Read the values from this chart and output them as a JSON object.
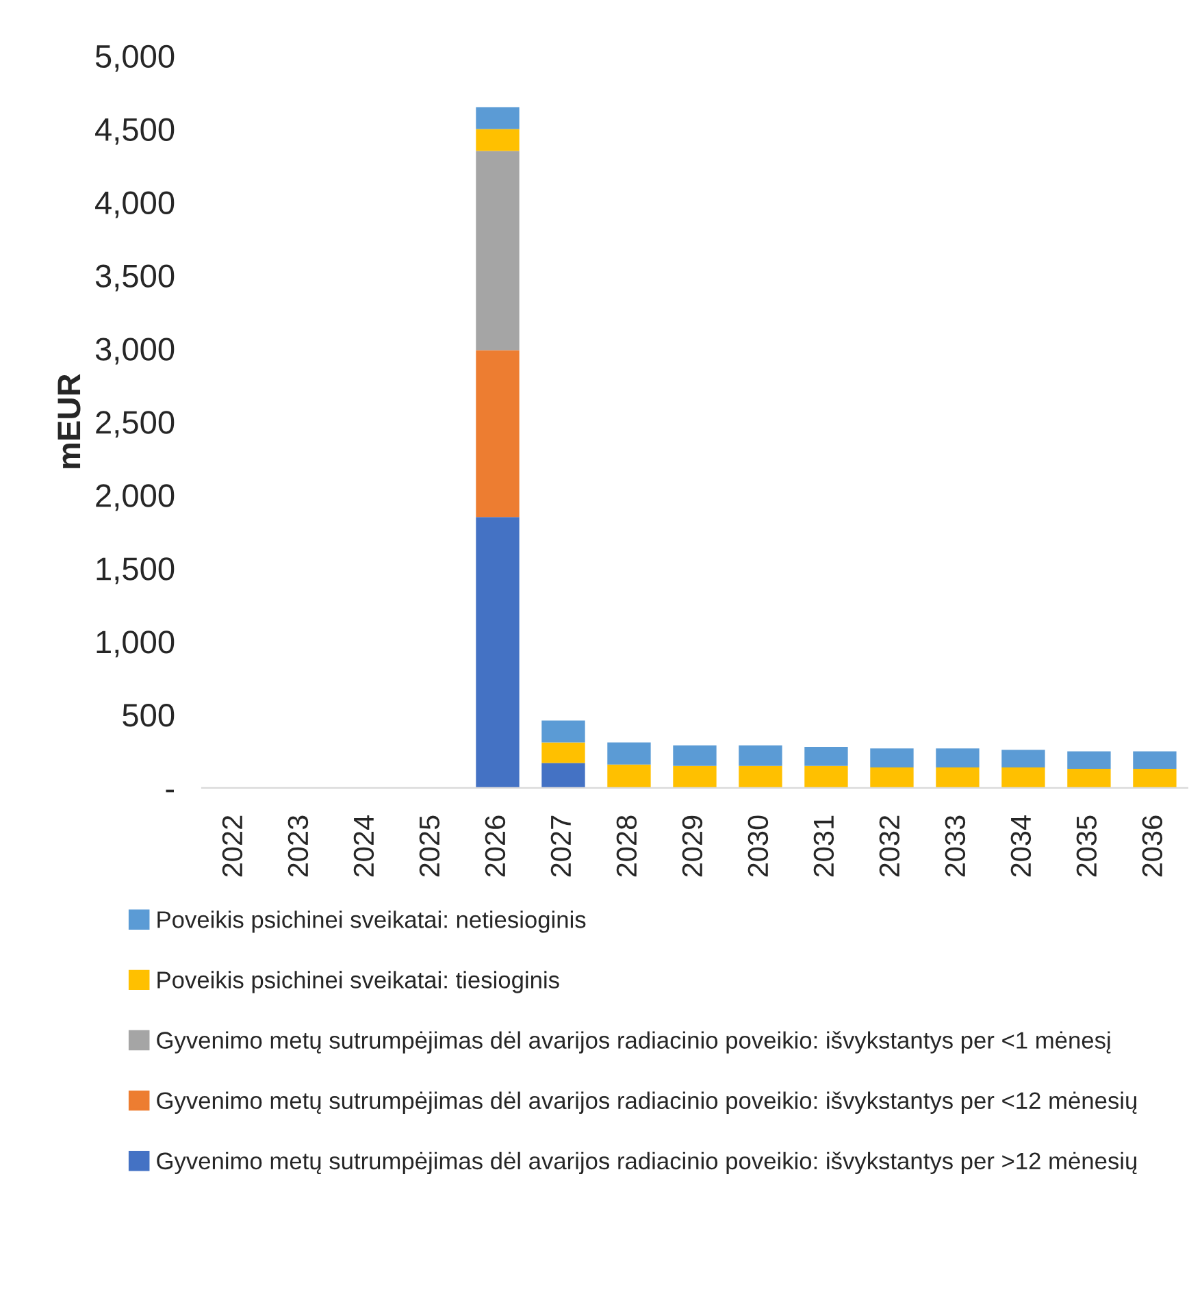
{
  "chart_data": {
    "type": "bar",
    "stacked": true,
    "ylabel": "mEUR",
    "categories": [
      "2022",
      "2023",
      "2024",
      "2025",
      "2026",
      "2027",
      "2028",
      "2029",
      "2030",
      "2031",
      "2032",
      "2033",
      "2034",
      "2035",
      "2036"
    ],
    "series": [
      {
        "name": "Gyvenimo metų sutrumpėjimas dėl avarijos radiacinio poveikio: išvykstantys per >12 mėnesių",
        "color": "#4472c4",
        "values": [
          0,
          0,
          0,
          0,
          1850,
          170,
          0,
          0,
          0,
          0,
          0,
          0,
          0,
          0,
          0
        ]
      },
      {
        "name": "Gyvenimo metų sutrumpėjimas dėl avarijos radiacinio poveikio: išvykstantys per <12 mėnesių",
        "color": "#ed7d31",
        "values": [
          0,
          0,
          0,
          0,
          1140,
          0,
          0,
          0,
          0,
          0,
          0,
          0,
          0,
          0,
          0
        ]
      },
      {
        "name": "Gyvenimo metų sutrumpėjimas dėl avarijos radiacinio poveikio: išvykstantys per <1 mėnesį",
        "color": "#a5a5a5",
        "values": [
          0,
          0,
          0,
          0,
          1360,
          0,
          0,
          0,
          0,
          0,
          0,
          0,
          0,
          0,
          0
        ]
      },
      {
        "name": "Poveikis psichinei sveikatai: tiesioginis",
        "color": "#ffc000",
        "values": [
          0,
          0,
          0,
          0,
          150,
          140,
          160,
          150,
          150,
          150,
          140,
          140,
          140,
          130,
          130
        ]
      },
      {
        "name": "Poveikis psichinei sveikatai: netiesioginis",
        "color": "#5b9bd5",
        "values": [
          0,
          0,
          0,
          0,
          150,
          150,
          150,
          140,
          140,
          130,
          130,
          130,
          120,
          120,
          120
        ]
      }
    ],
    "ylim": [
      0,
      5000
    ],
    "yticks": [
      {
        "value": 0,
        "label": "-"
      },
      {
        "value": 500,
        "label": "500"
      },
      {
        "value": 1000,
        "label": "1,000"
      },
      {
        "value": 1500,
        "label": "1,500"
      },
      {
        "value": 2000,
        "label": "2,000"
      },
      {
        "value": 2500,
        "label": "2,500"
      },
      {
        "value": 3000,
        "label": "3,000"
      },
      {
        "value": 3500,
        "label": "3,500"
      },
      {
        "value": 4000,
        "label": "4,000"
      },
      {
        "value": 4500,
        "label": "4,500"
      },
      {
        "value": 5000,
        "label": "5,000"
      }
    ],
    "grid": false,
    "legend": "bottom"
  }
}
